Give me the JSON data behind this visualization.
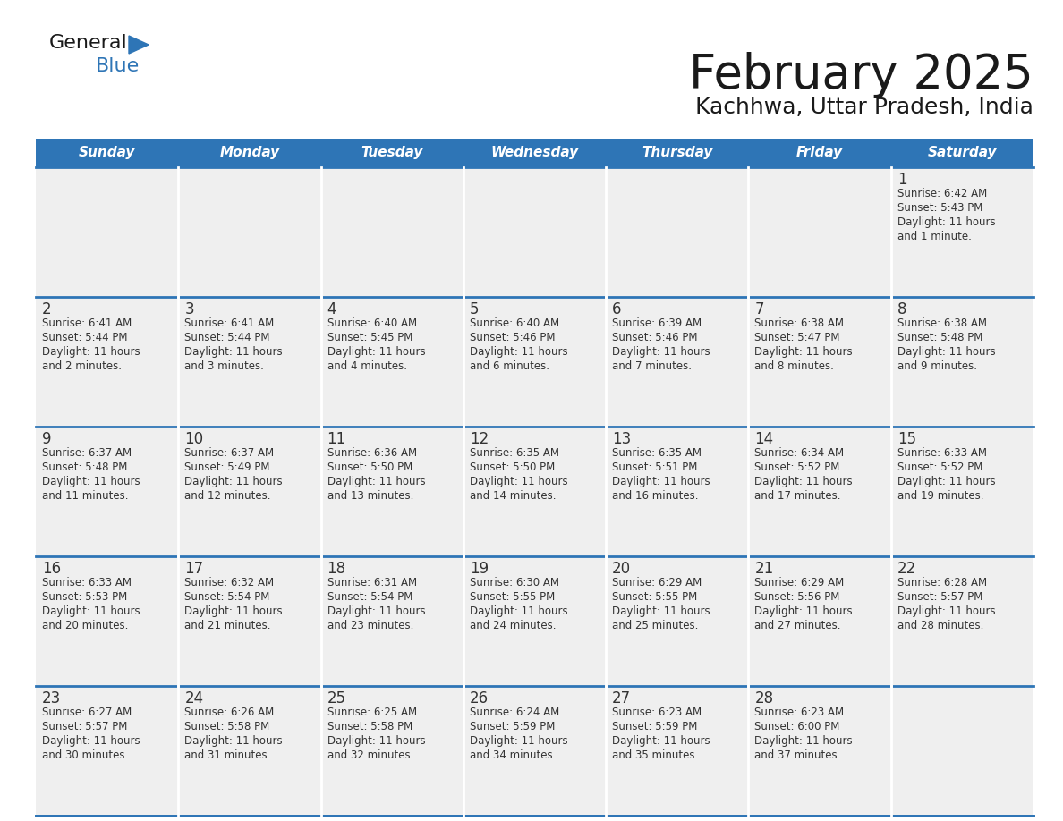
{
  "title": "February 2025",
  "subtitle": "Kachhwa, Uttar Pradesh, India",
  "header_bg": "#2E75B6",
  "header_text_color": "#FFFFFF",
  "cell_bg": "#EFEFEF",
  "grid_line_color": "#2E75B6",
  "day_number_color": "#333333",
  "cell_text_color": "#333333",
  "days_of_week": [
    "Sunday",
    "Monday",
    "Tuesday",
    "Wednesday",
    "Thursday",
    "Friday",
    "Saturday"
  ],
  "weeks": [
    [
      {
        "day": null,
        "sunrise": null,
        "sunset": null,
        "daylight_line1": null,
        "daylight_line2": null
      },
      {
        "day": null,
        "sunrise": null,
        "sunset": null,
        "daylight_line1": null,
        "daylight_line2": null
      },
      {
        "day": null,
        "sunrise": null,
        "sunset": null,
        "daylight_line1": null,
        "daylight_line2": null
      },
      {
        "day": null,
        "sunrise": null,
        "sunset": null,
        "daylight_line1": null,
        "daylight_line2": null
      },
      {
        "day": null,
        "sunrise": null,
        "sunset": null,
        "daylight_line1": null,
        "daylight_line2": null
      },
      {
        "day": null,
        "sunrise": null,
        "sunset": null,
        "daylight_line1": null,
        "daylight_line2": null
      },
      {
        "day": 1,
        "sunrise": "6:42 AM",
        "sunset": "5:43 PM",
        "daylight_line1": "Daylight: 11 hours",
        "daylight_line2": "and 1 minute."
      }
    ],
    [
      {
        "day": 2,
        "sunrise": "6:41 AM",
        "sunset": "5:44 PM",
        "daylight_line1": "Daylight: 11 hours",
        "daylight_line2": "and 2 minutes."
      },
      {
        "day": 3,
        "sunrise": "6:41 AM",
        "sunset": "5:44 PM",
        "daylight_line1": "Daylight: 11 hours",
        "daylight_line2": "and 3 minutes."
      },
      {
        "day": 4,
        "sunrise": "6:40 AM",
        "sunset": "5:45 PM",
        "daylight_line1": "Daylight: 11 hours",
        "daylight_line2": "and 4 minutes."
      },
      {
        "day": 5,
        "sunrise": "6:40 AM",
        "sunset": "5:46 PM",
        "daylight_line1": "Daylight: 11 hours",
        "daylight_line2": "and 6 minutes."
      },
      {
        "day": 6,
        "sunrise": "6:39 AM",
        "sunset": "5:46 PM",
        "daylight_line1": "Daylight: 11 hours",
        "daylight_line2": "and 7 minutes."
      },
      {
        "day": 7,
        "sunrise": "6:38 AM",
        "sunset": "5:47 PM",
        "daylight_line1": "Daylight: 11 hours",
        "daylight_line2": "and 8 minutes."
      },
      {
        "day": 8,
        "sunrise": "6:38 AM",
        "sunset": "5:48 PM",
        "daylight_line1": "Daylight: 11 hours",
        "daylight_line2": "and 9 minutes."
      }
    ],
    [
      {
        "day": 9,
        "sunrise": "6:37 AM",
        "sunset": "5:48 PM",
        "daylight_line1": "Daylight: 11 hours",
        "daylight_line2": "and 11 minutes."
      },
      {
        "day": 10,
        "sunrise": "6:37 AM",
        "sunset": "5:49 PM",
        "daylight_line1": "Daylight: 11 hours",
        "daylight_line2": "and 12 minutes."
      },
      {
        "day": 11,
        "sunrise": "6:36 AM",
        "sunset": "5:50 PM",
        "daylight_line1": "Daylight: 11 hours",
        "daylight_line2": "and 13 minutes."
      },
      {
        "day": 12,
        "sunrise": "6:35 AM",
        "sunset": "5:50 PM",
        "daylight_line1": "Daylight: 11 hours",
        "daylight_line2": "and 14 minutes."
      },
      {
        "day": 13,
        "sunrise": "6:35 AM",
        "sunset": "5:51 PM",
        "daylight_line1": "Daylight: 11 hours",
        "daylight_line2": "and 16 minutes."
      },
      {
        "day": 14,
        "sunrise": "6:34 AM",
        "sunset": "5:52 PM",
        "daylight_line1": "Daylight: 11 hours",
        "daylight_line2": "and 17 minutes."
      },
      {
        "day": 15,
        "sunrise": "6:33 AM",
        "sunset": "5:52 PM",
        "daylight_line1": "Daylight: 11 hours",
        "daylight_line2": "and 19 minutes."
      }
    ],
    [
      {
        "day": 16,
        "sunrise": "6:33 AM",
        "sunset": "5:53 PM",
        "daylight_line1": "Daylight: 11 hours",
        "daylight_line2": "and 20 minutes."
      },
      {
        "day": 17,
        "sunrise": "6:32 AM",
        "sunset": "5:54 PM",
        "daylight_line1": "Daylight: 11 hours",
        "daylight_line2": "and 21 minutes."
      },
      {
        "day": 18,
        "sunrise": "6:31 AM",
        "sunset": "5:54 PM",
        "daylight_line1": "Daylight: 11 hours",
        "daylight_line2": "and 23 minutes."
      },
      {
        "day": 19,
        "sunrise": "6:30 AM",
        "sunset": "5:55 PM",
        "daylight_line1": "Daylight: 11 hours",
        "daylight_line2": "and 24 minutes."
      },
      {
        "day": 20,
        "sunrise": "6:29 AM",
        "sunset": "5:55 PM",
        "daylight_line1": "Daylight: 11 hours",
        "daylight_line2": "and 25 minutes."
      },
      {
        "day": 21,
        "sunrise": "6:29 AM",
        "sunset": "5:56 PM",
        "daylight_line1": "Daylight: 11 hours",
        "daylight_line2": "and 27 minutes."
      },
      {
        "day": 22,
        "sunrise": "6:28 AM",
        "sunset": "5:57 PM",
        "daylight_line1": "Daylight: 11 hours",
        "daylight_line2": "and 28 minutes."
      }
    ],
    [
      {
        "day": 23,
        "sunrise": "6:27 AM",
        "sunset": "5:57 PM",
        "daylight_line1": "Daylight: 11 hours",
        "daylight_line2": "and 30 minutes."
      },
      {
        "day": 24,
        "sunrise": "6:26 AM",
        "sunset": "5:58 PM",
        "daylight_line1": "Daylight: 11 hours",
        "daylight_line2": "and 31 minutes."
      },
      {
        "day": 25,
        "sunrise": "6:25 AM",
        "sunset": "5:58 PM",
        "daylight_line1": "Daylight: 11 hours",
        "daylight_line2": "and 32 minutes."
      },
      {
        "day": 26,
        "sunrise": "6:24 AM",
        "sunset": "5:59 PM",
        "daylight_line1": "Daylight: 11 hours",
        "daylight_line2": "and 34 minutes."
      },
      {
        "day": 27,
        "sunrise": "6:23 AM",
        "sunset": "5:59 PM",
        "daylight_line1": "Daylight: 11 hours",
        "daylight_line2": "and 35 minutes."
      },
      {
        "day": 28,
        "sunrise": "6:23 AM",
        "sunset": "6:00 PM",
        "daylight_line1": "Daylight: 11 hours",
        "daylight_line2": "and 37 minutes."
      },
      {
        "day": null,
        "sunrise": null,
        "sunset": null,
        "daylight_line1": null,
        "daylight_line2": null
      }
    ]
  ]
}
